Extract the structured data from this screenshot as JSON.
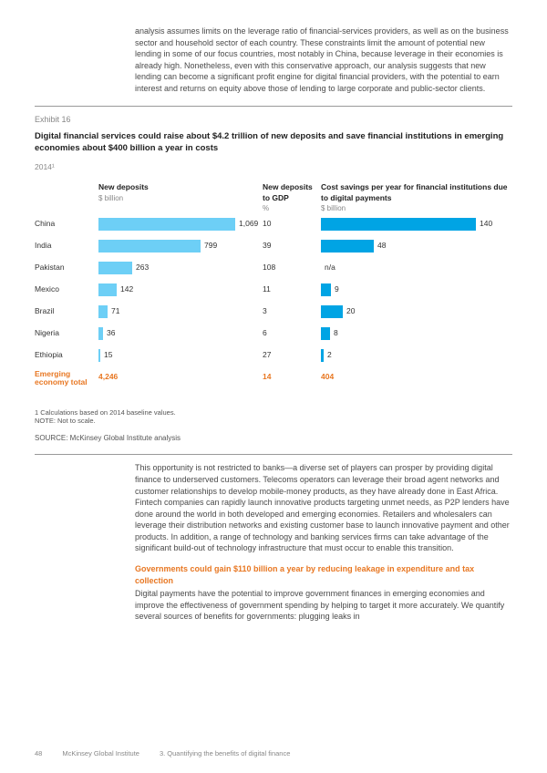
{
  "intro": "analysis assumes limits on the leverage ratio of financial-services providers, as well as on the business sector and household sector of each country. These constraints limit the amount of potential new lending in some of our focus countries, most notably in China, because leverage in their economies is already high. Nonetheless, even with this conservative approach, our analysis suggests that new lending can become a significant profit engine for digital financial providers, with the potential to earn interest and returns on equity above those of lending to large corporate and public-sector clients.",
  "exhibit": {
    "label": "Exhibit 16",
    "title": "Digital financial services could  raise about $4.2 trillion of new deposits and save financial institutions in emerging economies about $400 billion a year in costs",
    "year": "2014¹",
    "headers": {
      "deposits": {
        "h1": "New deposits",
        "h2": "$ billion"
      },
      "gdp": {
        "h1": "New deposits to GDP",
        "h2": "%"
      },
      "cost": {
        "h1": "Cost savings per year for financial institutions due to digital payments",
        "h2": "$ billion"
      }
    },
    "colors": {
      "bar_light": "#6dcff6",
      "bar_dark": "#00a4e4",
      "accent": "#e87722"
    },
    "rows": [
      {
        "country": "China",
        "dep": 1069,
        "dep_txt": "1,069",
        "dep_w": 150,
        "gdp": "10",
        "cost": 140,
        "cost_txt": "140",
        "cost_w": 170
      },
      {
        "country": "India",
        "dep": 799,
        "dep_txt": "799",
        "dep_w": 112,
        "gdp": "39",
        "cost": 48,
        "cost_txt": "48",
        "cost_w": 58
      },
      {
        "country": "Pakistan",
        "dep": 263,
        "dep_txt": "263",
        "dep_w": 37,
        "gdp": "108",
        "cost": null,
        "cost_txt": "n/a",
        "cost_w": 0
      },
      {
        "country": "Mexico",
        "dep": 142,
        "dep_txt": "142",
        "dep_w": 20,
        "gdp": "11",
        "cost": 9,
        "cost_txt": "9",
        "cost_w": 11
      },
      {
        "country": "Brazil",
        "dep": 71,
        "dep_txt": "71",
        "dep_w": 10,
        "gdp": "3",
        "cost": 20,
        "cost_txt": "20",
        "cost_w": 24
      },
      {
        "country": "Nigeria",
        "dep": 36,
        "dep_txt": "36",
        "dep_w": 5,
        "gdp": "6",
        "cost": 8,
        "cost_txt": "8",
        "cost_w": 10
      },
      {
        "country": "Ethiopia",
        "dep": 15,
        "dep_txt": "15",
        "dep_w": 2,
        "gdp": "27",
        "cost": 2,
        "cost_txt": "2",
        "cost_w": 3
      }
    ],
    "totals": {
      "label": "Emerging economy total",
      "dep": "4,246",
      "gdp": "14",
      "cost": "404"
    },
    "note1": "1  Calculations based on 2014 baseline values.",
    "note2": "NOTE: Not to scale.",
    "source": "SOURCE:  McKinsey Global Institute analysis"
  },
  "outro1": "This opportunity is not restricted to banks—a diverse set of players can prosper by providing digital finance to underserved customers. Telecoms operators can leverage their broad agent networks and customer relationships to develop mobile-money products, as they have already done in East Africa. Fintech companies can rapidly launch innovative products targeting unmet needs, as P2P lenders have done around the world in both developed and emerging economies. Retailers and wholesalers can leverage their distribution networks and existing customer base to launch innovative payment and other products. In addition, a range of technology and banking services firms can take advantage of the significant build-out of technology infrastructure that must occur to enable this transition.",
  "section_heading": "Governments could gain $110 billion a year by reducing leakage in expenditure and tax collection",
  "outro2": "Digital payments have the potential to improve government finances in emerging economies and improve the effectiveness of government spending by helping to target it more accurately. We quantify several sources of benefits for governments: plugging leaks in",
  "footer": {
    "page": "48",
    "org": "McKinsey Global Institute",
    "chapter": "3. Quantifying the benefits of digital finance"
  }
}
